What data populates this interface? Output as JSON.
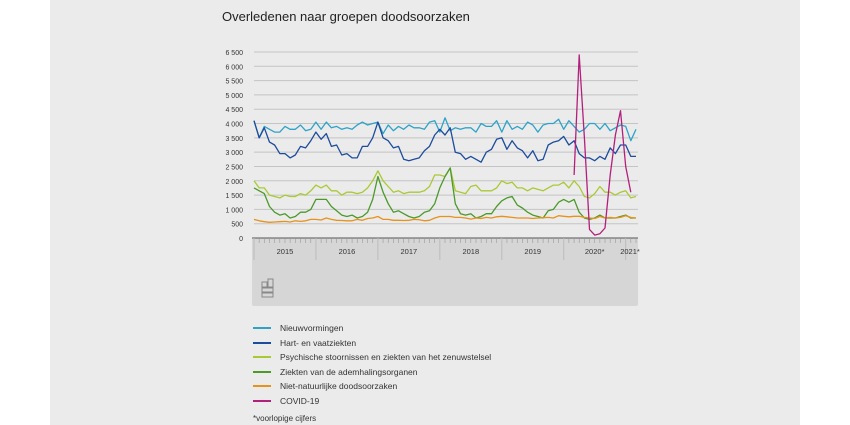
{
  "chart_data": {
    "type": "line",
    "title": "Overledenen naar groepen doodsoorzaken",
    "footnote": "*voorlopige cijfers",
    "x_start": "2015-01",
    "x_frequency": "monthly",
    "x_tick_labels": [
      "2015",
      "2016",
      "2017",
      "2018",
      "2019",
      "2020*",
      "2021*"
    ],
    "ylim": [
      0,
      6500
    ],
    "y_ticks": [
      0,
      500,
      1000,
      1500,
      2000,
      2500,
      3000,
      3500,
      4000,
      4500,
      5000,
      5500,
      6000,
      6500
    ],
    "y_tick_labels": [
      "0",
      "500",
      "1 000",
      "1 500",
      "2 000",
      "2 500",
      "3 000",
      "3 500",
      "4 000",
      "4 500",
      "5 000",
      "5 500",
      "6 000",
      "6 500"
    ],
    "grid": true,
    "legend_placement": "bottom",
    "series": [
      {
        "name": "Nieuwvormingen",
        "color": "#2ea3c9",
        "values": [
          4100,
          3500,
          3900,
          3800,
          3700,
          3700,
          3900,
          3800,
          3800,
          3950,
          3750,
          3800,
          4050,
          3800,
          4050,
          3850,
          3900,
          3800,
          3850,
          3800,
          3950,
          4050,
          3950,
          4000,
          4050,
          3650,
          3950,
          3750,
          3900,
          3800,
          3950,
          3850,
          3850,
          3800,
          4050,
          4100,
          3700,
          4200,
          3750,
          3850,
          3800,
          3850,
          3850,
          3700,
          4000,
          3900,
          3900,
          4100,
          3700,
          4100,
          3800,
          3900,
          3800,
          4050,
          3950,
          3700,
          3950,
          4000,
          4000,
          4150,
          3800,
          4100,
          3900,
          3700,
          3800,
          4000,
          4000,
          3800,
          4000,
          3750,
          3850,
          3950,
          3900,
          3400,
          3800
        ]
      },
      {
        "name": "Hart- en vaatziekten",
        "color": "#1c4c9e",
        "values": [
          4100,
          3500,
          3850,
          3350,
          3250,
          2950,
          2950,
          2800,
          2900,
          3200,
          3150,
          3400,
          3700,
          3450,
          3650,
          3200,
          3250,
          2900,
          2950,
          2800,
          2800,
          3200,
          3200,
          3500,
          4050,
          3500,
          3400,
          3150,
          3200,
          2750,
          2700,
          2750,
          2800,
          3050,
          3200,
          3600,
          3800,
          3600,
          3850,
          3000,
          2950,
          2750,
          2850,
          2750,
          2650,
          3000,
          3100,
          3450,
          3500,
          3100,
          3400,
          3150,
          3050,
          2800,
          3050,
          2700,
          2750,
          3250,
          3350,
          3400,
          3550,
          3250,
          3400,
          2950,
          2800,
          2800,
          2700,
          2850,
          2750,
          3150,
          2950,
          3250,
          3250,
          2850,
          2850
        ]
      },
      {
        "name": "Psychische stoornissen en ziekten van het zenuwstelsel",
        "color": "#a9c934",
        "values": [
          2000,
          1750,
          1750,
          1500,
          1450,
          1400,
          1500,
          1450,
          1450,
          1550,
          1500,
          1650,
          1850,
          1750,
          1850,
          1650,
          1650,
          1500,
          1600,
          1600,
          1550,
          1600,
          1750,
          2000,
          2350,
          2000,
          1800,
          1600,
          1650,
          1550,
          1600,
          1600,
          1600,
          1650,
          1800,
          2200,
          2200,
          2150,
          2450,
          1650,
          1600,
          1550,
          1800,
          1850,
          1650,
          1650,
          1650,
          1750,
          2000,
          1900,
          1950,
          1750,
          1750,
          1650,
          1750,
          1700,
          1650,
          1750,
          1850,
          1850,
          1950,
          1750,
          2000,
          1800,
          1450,
          1400,
          1550,
          1800,
          1600,
          1600,
          1500,
          1600,
          1650,
          1400,
          1450
        ]
      },
      {
        "name": "Ziekten van de ademhalingsorganen",
        "color": "#4b9a2a",
        "values": [
          1750,
          1650,
          1550,
          1100,
          900,
          800,
          850,
          700,
          750,
          900,
          900,
          1000,
          1350,
          1350,
          1350,
          1100,
          950,
          800,
          750,
          800,
          700,
          750,
          900,
          1350,
          2150,
          1600,
          1200,
          900,
          950,
          850,
          750,
          700,
          750,
          900,
          950,
          1200,
          1750,
          2150,
          2450,
          1200,
          850,
          800,
          850,
          700,
          750,
          850,
          850,
          1100,
          1300,
          1400,
          1450,
          1150,
          1050,
          900,
          800,
          750,
          700,
          950,
          1000,
          1250,
          1350,
          1250,
          1350,
          900,
          700,
          650,
          700,
          800,
          700,
          700,
          700,
          750,
          800,
          700,
          700
        ]
      },
      {
        "name": "Niet-natuurlijke doodsoorzaken",
        "color": "#e8921c",
        "values": [
          650,
          600,
          570,
          550,
          560,
          570,
          580,
          560,
          600,
          580,
          600,
          650,
          650,
          630,
          700,
          650,
          620,
          610,
          600,
          600,
          650,
          620,
          680,
          700,
          750,
          650,
          650,
          620,
          620,
          610,
          620,
          650,
          640,
          600,
          620,
          700,
          750,
          750,
          750,
          720,
          720,
          700,
          660,
          700,
          680,
          720,
          700,
          740,
          760,
          740,
          720,
          700,
          700,
          700,
          680,
          700,
          710,
          720,
          700,
          780,
          760,
          740,
          760,
          760,
          720,
          700,
          680,
          750,
          700,
          720,
          700,
          720,
          780,
          720,
          700
        ]
      },
      {
        "name": "COVID-19",
        "color": "#b3207c",
        "values": [
          null,
          null,
          null,
          null,
          null,
          null,
          null,
          null,
          null,
          null,
          null,
          null,
          null,
          null,
          null,
          null,
          null,
          null,
          null,
          null,
          null,
          null,
          null,
          null,
          null,
          null,
          null,
          null,
          null,
          null,
          null,
          null,
          null,
          null,
          null,
          null,
          null,
          null,
          null,
          null,
          null,
          null,
          null,
          null,
          null,
          null,
          null,
          null,
          null,
          null,
          null,
          null,
          null,
          null,
          null,
          null,
          null,
          null,
          null,
          null,
          null,
          null,
          2200,
          6400,
          3500,
          300,
          100,
          150,
          350,
          2200,
          3600,
          4450,
          2500,
          1600,
          null
        ]
      }
    ]
  }
}
